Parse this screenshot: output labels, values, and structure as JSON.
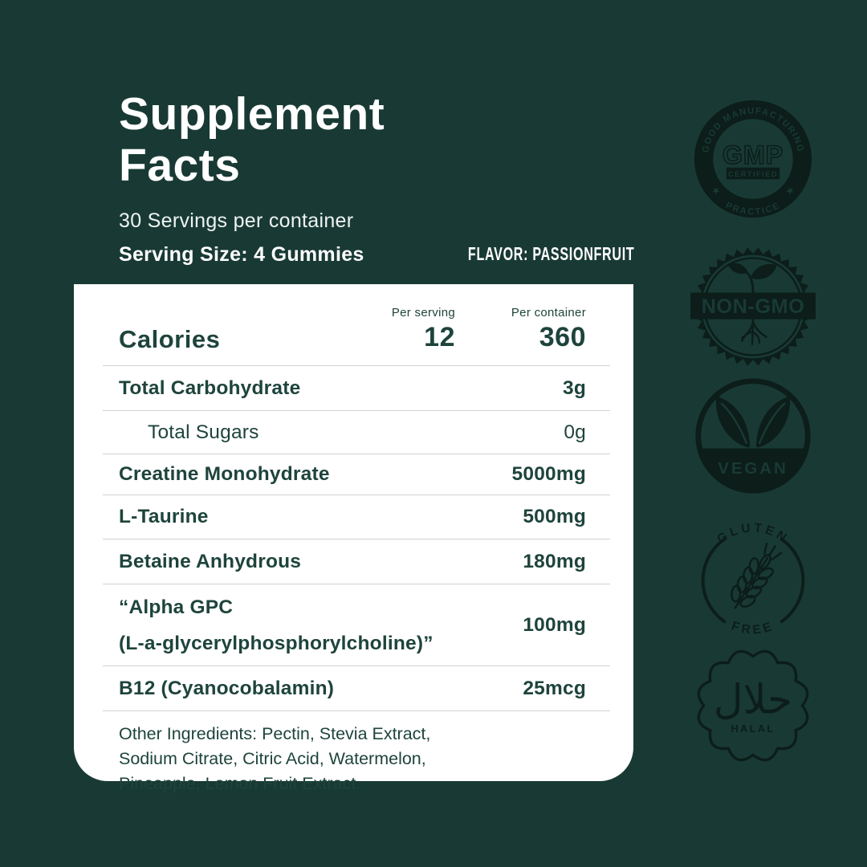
{
  "colors": {
    "background": "#193a34",
    "badge_ink": "#0c1d1a",
    "card_bg": "#ffffff",
    "card_text": "#1e443c",
    "divider": "#d2d2d2"
  },
  "header": {
    "title_line1": "Supplement",
    "title_line2": "Facts",
    "servings_per_container": "30 Servings per container",
    "serving_size": "Serving Size: 4 Gummies",
    "flavor": "FLAVOR: PASSIONFRUIT"
  },
  "facts": {
    "columns": {
      "per_serving": "Per serving",
      "per_container": "Per container"
    },
    "calories": {
      "label": "Calories",
      "per_serving": "12",
      "per_container": "360"
    },
    "rows": [
      {
        "label": "Total Carbohydrate",
        "value": "3g"
      },
      {
        "label": "Total Sugars",
        "value": "0g"
      },
      {
        "label": "Creatine Monohydrate",
        "value": "5000mg"
      },
      {
        "label": "L-Taurine",
        "value": "500mg"
      },
      {
        "label": "Betaine Anhydrous",
        "value": "180mg"
      },
      {
        "label_line1": "“Alpha GPC",
        "label_line2": "(L-a-glycerylphosphorylcholine)”",
        "value": "100mg"
      },
      {
        "label": "B12 (Cyanocobalamin)",
        "value": "25mcg"
      }
    ],
    "other_ingredients": {
      "line1": "Other Ingredients: Pectin, Stevia Extract,",
      "line2": "Sodium Citrate, Citric Acid, Watermelon,",
      "line3": "Pineapple, Lemon Fruit Extract."
    }
  },
  "badges": {
    "gmp": {
      "arc_top": "GOOD MANUFACTURING",
      "arc_bottom": "PRACTICE",
      "center": "GMP",
      "banner": "CERTIFIED"
    },
    "non_gmo": {
      "banner": "NON-GMO"
    },
    "vegan": {
      "label": "VEGAN"
    },
    "gluten_free": {
      "arc_top": "GLUTEN",
      "arc_bottom": "FREE"
    },
    "halal": {
      "arabic": "حلال",
      "label": "HALAL"
    }
  }
}
